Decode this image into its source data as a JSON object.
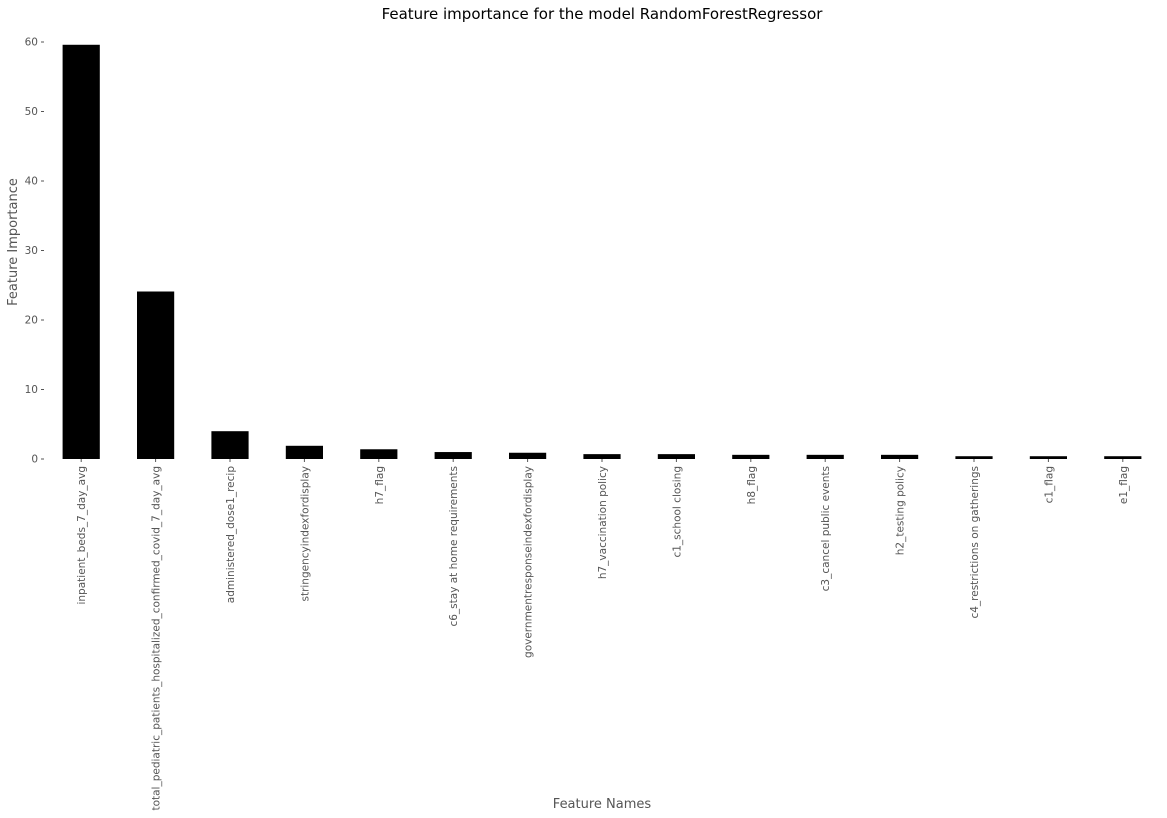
{
  "chart_data": {
    "type": "bar",
    "title": "Feature importance for the model RandomForestRegressor",
    "xlabel": "Feature Names",
    "ylabel": "Feature Importance",
    "ylim": [
      0,
      60
    ],
    "yticks": [
      0,
      10,
      20,
      30,
      40,
      50,
      60
    ],
    "grid": false,
    "bar_color": "#000000",
    "categories": [
      "inpatient_beds_7_day_avg",
      "total_pediatric_patients_hospitalized_confirmed_covid_7_day_avg",
      "administered_dose1_recip",
      "stringencyindexfordisplay",
      "h7_flag",
      "c6_stay at home requirements",
      "governmentresponseindexfordisplay",
      "h7_vaccination policy",
      "c1_school closing",
      "h8_flag",
      "c3_cancel public events",
      "h2_testing policy",
      "c4_restrictions on gatherings",
      "c1_flag",
      "e1_flag"
    ],
    "values": [
      59.6,
      24.1,
      4.0,
      1.9,
      1.4,
      1.0,
      0.9,
      0.7,
      0.7,
      0.6,
      0.6,
      0.6,
      0.4,
      0.4,
      0.4
    ]
  }
}
